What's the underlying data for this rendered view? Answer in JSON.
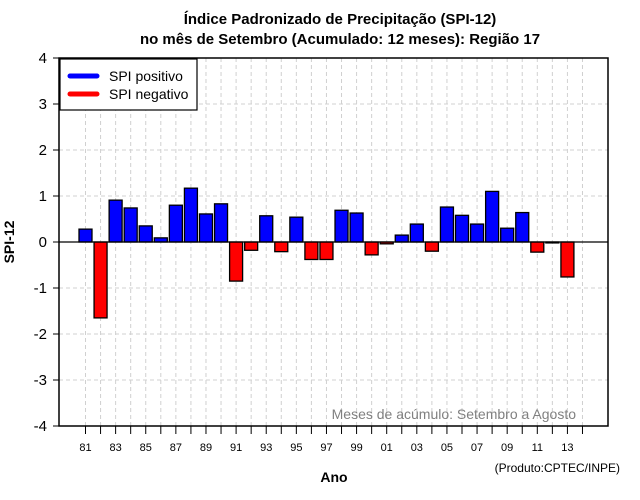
{
  "chart_data": {
    "type": "bar",
    "title": "Índice Padronizado de Precipitação (SPI-12)",
    "subtitle": "no mês de Setembro (Acumulado: 12 meses): Região 17",
    "xlabel": "Ano",
    "ylabel": "SPI-12",
    "ylim": [
      -4,
      4
    ],
    "xlim": [
      1980,
      2014
    ],
    "yticks": [
      -4,
      -3,
      -2,
      -1,
      0,
      1,
      2,
      3,
      4
    ],
    "xticks_years": [
      1981,
      1983,
      1985,
      1987,
      1989,
      1991,
      1993,
      1995,
      1997,
      1999,
      2001,
      2003,
      2005,
      2007,
      2009,
      2011,
      2013
    ],
    "xtick_labels": [
      "81",
      "83",
      "85",
      "87",
      "89",
      "91",
      "93",
      "95",
      "97",
      "99",
      "01",
      "03",
      "05",
      "07",
      "09",
      "11",
      "13"
    ],
    "grid": true,
    "categories": [
      1981,
      1982,
      1983,
      1984,
      1985,
      1986,
      1987,
      1988,
      1989,
      1990,
      1991,
      1992,
      1993,
      1994,
      1995,
      1996,
      1997,
      1998,
      1999,
      2000,
      2001,
      2002,
      2003,
      2004,
      2005,
      2006,
      2007,
      2008,
      2009,
      2010,
      2011,
      2012,
      2013
    ],
    "values": [
      0.28,
      -1.65,
      0.91,
      0.74,
      0.35,
      0.09,
      0.8,
      1.17,
      0.61,
      0.83,
      -0.85,
      -0.18,
      0.57,
      -0.21,
      0.54,
      -0.38,
      -0.38,
      0.69,
      0.63,
      -0.28,
      -0.04,
      0.15,
      0.39,
      -0.2,
      0.76,
      0.58,
      0.39,
      1.1,
      0.3,
      0.64,
      -0.22,
      -0.02,
      -0.76
    ],
    "legend": {
      "placement": "top-left",
      "entries": [
        {
          "label": "SPI positivo",
          "color": "#0000ff"
        },
        {
          "label": "SPI negativo",
          "color": "#ff0000"
        }
      ]
    },
    "colors": {
      "positive": "#0000ff",
      "negative": "#ff0000",
      "grid": "#d0d0d0",
      "annotation": "#808080"
    },
    "annotation": "Meses de acúmulo: Setembro a Agosto",
    "credit": "(Produto:CPTEC/INPE)"
  }
}
